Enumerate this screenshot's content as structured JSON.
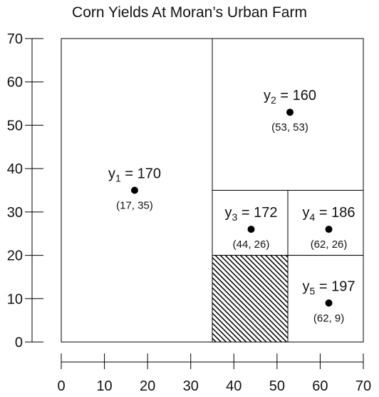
{
  "title": "Corn Yields At Moran’s Urban Farm",
  "axes": {
    "x_range": [
      0,
      70
    ],
    "y_range": [
      0,
      70
    ],
    "x_ticks": [
      "0",
      "10",
      "20",
      "30",
      "40",
      "50",
      "60",
      "70"
    ],
    "y_ticks": [
      "0",
      "10",
      "20",
      "30",
      "40",
      "50",
      "60",
      "70"
    ],
    "tick_values": [
      0,
      10,
      20,
      30,
      40,
      50,
      60,
      70
    ]
  },
  "regions": [
    {
      "id": "r1",
      "x0": 0,
      "x1": 35,
      "y0": 0,
      "y1": 70,
      "hatched": false
    },
    {
      "id": "r2",
      "x0": 35,
      "x1": 70,
      "y0": 35,
      "y1": 70,
      "hatched": false
    },
    {
      "id": "r3",
      "x0": 35,
      "x1": 52.5,
      "y0": 20,
      "y1": 35,
      "hatched": false
    },
    {
      "id": "r4",
      "x0": 52.5,
      "x1": 70,
      "y0": 20,
      "y1": 35,
      "hatched": false
    },
    {
      "id": "r5",
      "x0": 52.5,
      "x1": 70,
      "y0": 0,
      "y1": 20,
      "hatched": false
    },
    {
      "id": "r6",
      "x0": 35,
      "x1": 52.5,
      "y0": 0,
      "y1": 20,
      "hatched": true
    }
  ],
  "points": [
    {
      "var": "y",
      "sub": "1",
      "value": "170",
      "x": 17,
      "y": 35,
      "coord_label": "(17, 35)"
    },
    {
      "var": "y",
      "sub": "2",
      "value": "160",
      "x": 53,
      "y": 53,
      "coord_label": "(53, 53)"
    },
    {
      "var": "y",
      "sub": "3",
      "value": "172",
      "x": 44,
      "y": 26,
      "coord_label": "(44, 26)"
    },
    {
      "var": "y",
      "sub": "4",
      "value": "186",
      "x": 62,
      "y": 26,
      "coord_label": "(62, 26)"
    },
    {
      "var": "y",
      "sub": "5",
      "value": "197",
      "x": 62,
      "y": 9,
      "coord_label": "(62, 9)"
    }
  ]
}
